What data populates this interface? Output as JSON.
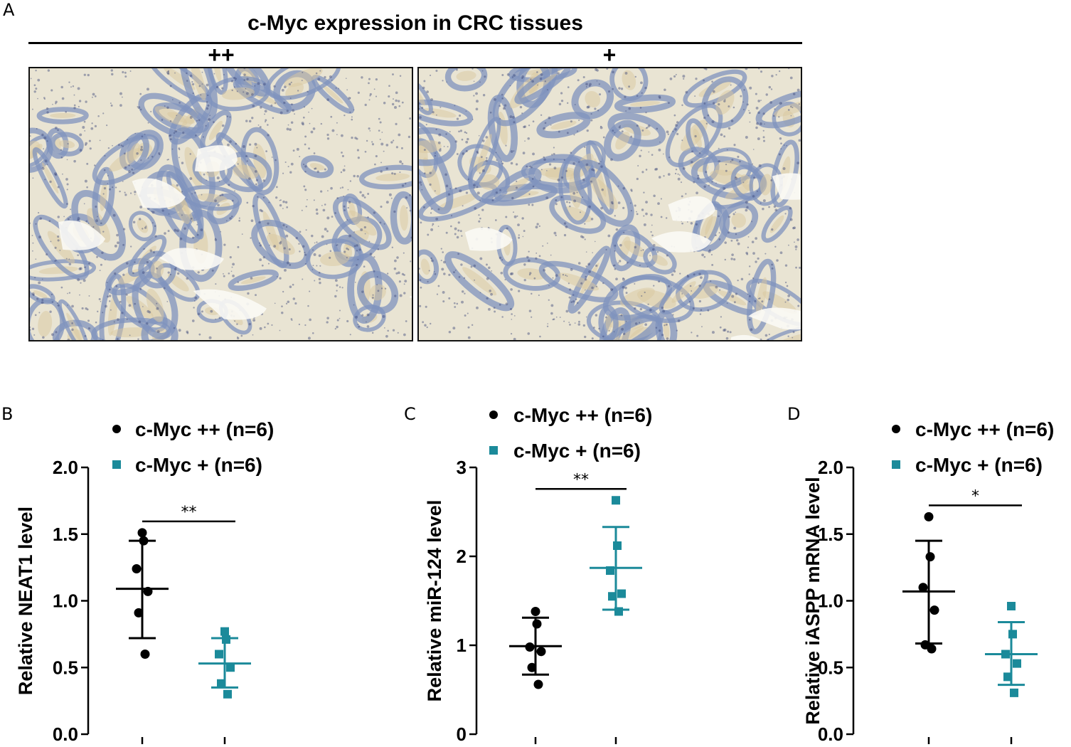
{
  "figure": {
    "title": "c-Myc expression in CRC tissues",
    "panel_letters": [
      "A",
      "B",
      "C",
      "D"
    ],
    "groups": [
      "++",
      "+"
    ]
  },
  "colors": {
    "group_high": "#000000",
    "group_low": "#1b8a9a",
    "tissue_stroma": "#e9e4d3",
    "tissue_gland": "#7f93bd"
  },
  "chart_data": [
    {
      "type": "scatter",
      "panel": "B",
      "ylabel": "Relative NEAT1 level",
      "ylim": [
        0,
        2
      ],
      "yticks": [
        "0.0",
        "0.5",
        "1.0",
        "1.5",
        "2.0"
      ],
      "significance": "**",
      "series": [
        {
          "name": "c-Myc ++ (n=6)",
          "marker": "circle",
          "values": [
            1.51,
            1.45,
            1.24,
            1.07,
            0.91,
            0.6
          ],
          "mean": 1.09,
          "sd_low": 0.72,
          "sd_high": 1.45
        },
        {
          "name": "c-Myc + (n=6)",
          "marker": "square",
          "values": [
            0.77,
            0.71,
            0.6,
            0.5,
            0.38,
            0.3
          ],
          "mean": 0.53,
          "sd_low": 0.35,
          "sd_high": 0.72
        }
      ]
    },
    {
      "type": "scatter",
      "panel": "C",
      "ylabel": "Relative miR-124 level",
      "ylim": [
        0,
        3
      ],
      "yticks": [
        "0",
        "1",
        "2",
        "3"
      ],
      "significance": "**",
      "series": [
        {
          "name": "c-Myc ++ (n=6)",
          "marker": "circle",
          "values": [
            1.38,
            1.24,
            0.98,
            0.93,
            0.75,
            0.56
          ],
          "mean": 0.99,
          "sd_low": 0.67,
          "sd_high": 1.31
        },
        {
          "name": "c-Myc + (n=6)",
          "marker": "square",
          "values": [
            2.63,
            2.12,
            1.84,
            1.58,
            1.55,
            1.38
          ],
          "mean": 1.87,
          "sd_low": 1.4,
          "sd_high": 2.33
        }
      ]
    },
    {
      "type": "scatter",
      "panel": "D",
      "ylabel": "Relative iASPP mRNA level",
      "ylim": [
        0,
        2
      ],
      "yticks": [
        "0.0",
        "0.5",
        "1.0",
        "1.5",
        "2.0"
      ],
      "significance": "*",
      "series": [
        {
          "name": "c-Myc ++ (n=6)",
          "marker": "circle",
          "values": [
            1.63,
            1.33,
            1.1,
            0.93,
            0.67,
            0.64
          ],
          "mean": 1.07,
          "sd_low": 0.68,
          "sd_high": 1.45
        },
        {
          "name": "c-Myc + (n=6)",
          "marker": "square",
          "values": [
            0.96,
            0.75,
            0.6,
            0.53,
            0.43,
            0.31
          ],
          "mean": 0.6,
          "sd_low": 0.37,
          "sd_high": 0.84
        }
      ]
    }
  ]
}
